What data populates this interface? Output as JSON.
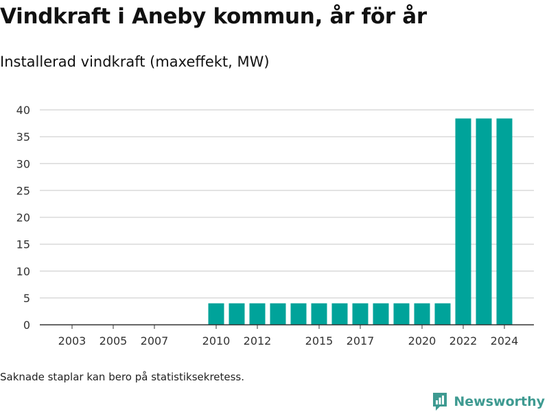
{
  "title": "Vindkraft i Aneby kommun, år för år",
  "subtitle": "Installerad vindkraft (maxeffekt, MW)",
  "footnote": "Saknade staplar kan bero på statistiksekretess.",
  "brand": {
    "name": "Newsworthy",
    "icon": "newsworthy-logo-icon"
  },
  "colors": {
    "bar": "#00a39a",
    "brand": "#3e9a91",
    "grid": "#d9d9d9",
    "axis": "#333333"
  },
  "chart_data": {
    "type": "bar",
    "categories": [
      "2003",
      "2004",
      "2005",
      "2006",
      "2007",
      "2008",
      "2009",
      "2010",
      "2011",
      "2012",
      "2013",
      "2014",
      "2015",
      "2016",
      "2017",
      "2018",
      "2019",
      "2020",
      "2021",
      "2022",
      "2023",
      "2024"
    ],
    "values": [
      null,
      null,
      null,
      null,
      null,
      null,
      null,
      4,
      4,
      4,
      4,
      4,
      4,
      4,
      4,
      4,
      4,
      4,
      4,
      38.4,
      38.4,
      38.4
    ],
    "x_tick_labels": [
      "2003",
      "2005",
      "2007",
      "2010",
      "2012",
      "2015",
      "2017",
      "2020",
      "2022",
      "2024"
    ],
    "y_ticks": [
      0,
      5,
      10,
      15,
      20,
      25,
      30,
      35,
      40
    ],
    "ylim": [
      0,
      40
    ],
    "grid": true,
    "legend": "none"
  }
}
